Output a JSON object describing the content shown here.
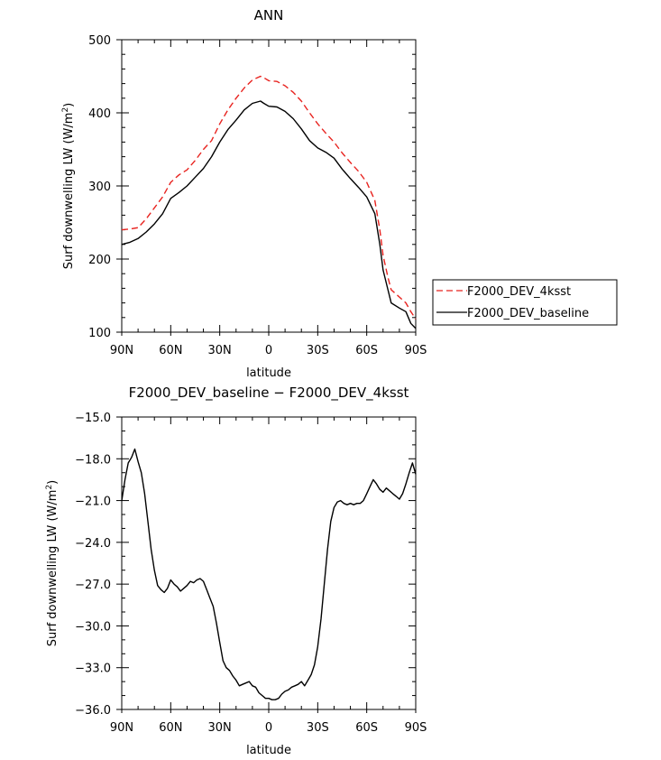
{
  "chart_data": [
    {
      "type": "line",
      "title": "ANN",
      "xlabel": "latitude",
      "ylabel": "Surf downwelling LW (W/m²)",
      "ylabel_main": "Surf downwelling LW (W/m",
      "ylabel_sup": "2",
      "ylabel_end": ")",
      "xlim": [
        90,
        -90
      ],
      "ylim": [
        100,
        500
      ],
      "x_ticks": [
        90,
        60,
        30,
        0,
        -30,
        -60,
        -90
      ],
      "x_tick_labels": [
        "90N",
        "60N",
        "30N",
        "0",
        "30S",
        "60S",
        "90S"
      ],
      "y_ticks": [
        100,
        200,
        300,
        400,
        500
      ],
      "y_tick_labels": [
        "100",
        "200",
        "300",
        "400",
        "500"
      ],
      "legend_position": "right",
      "series": [
        {
          "name": "F2000_DEV_4ksst",
          "color": "#e8231f",
          "dash": "dashed",
          "x": [
            90,
            85,
            80,
            75,
            70,
            65,
            60,
            55,
            50,
            45,
            40,
            35,
            30,
            25,
            20,
            15,
            10,
            5,
            3,
            0,
            -5,
            -10,
            -15,
            -20,
            -25,
            -30,
            -35,
            -40,
            -45,
            -50,
            -55,
            -60,
            -65,
            -68,
            -70,
            -73,
            -75,
            -80,
            -84,
            -87,
            -90
          ],
          "y": [
            240,
            241,
            243,
            255,
            270,
            285,
            305,
            315,
            322,
            335,
            350,
            362,
            385,
            404,
            420,
            434,
            445,
            450,
            448,
            444,
            443,
            437,
            428,
            416,
            400,
            385,
            372,
            360,
            345,
            332,
            320,
            305,
            280,
            240,
            205,
            175,
            158,
            148,
            140,
            128,
            118
          ]
        },
        {
          "name": "F2000_DEV_baseline",
          "color": "#000000",
          "dash": "solid",
          "x": [
            90,
            85,
            80,
            75,
            70,
            65,
            60,
            55,
            50,
            45,
            40,
            35,
            30,
            25,
            20,
            15,
            10,
            5,
            3,
            0,
            -5,
            -10,
            -15,
            -20,
            -25,
            -30,
            -35,
            -40,
            -45,
            -50,
            -55,
            -60,
            -65,
            -68,
            -70,
            -73,
            -75,
            -80,
            -84,
            -87,
            -90
          ],
          "y": [
            220,
            223,
            228,
            237,
            248,
            262,
            283,
            291,
            300,
            312,
            324,
            340,
            360,
            377,
            390,
            404,
            413,
            416,
            413,
            409,
            408,
            402,
            392,
            378,
            362,
            352,
            346,
            338,
            323,
            310,
            298,
            285,
            262,
            220,
            185,
            158,
            140,
            133,
            128,
            112,
            105
          ]
        }
      ]
    },
    {
      "type": "line",
      "title": "F2000_DEV_baseline − F2000_DEV_4ksst",
      "xlabel": "latitude",
      "ylabel": "Surf downwelling LW (W/m²)",
      "ylabel_main": "Surf downwelling LW (W/m",
      "ylabel_sup": "2",
      "ylabel_end": ")",
      "xlim": [
        90,
        -90
      ],
      "ylim": [
        -36,
        -15
      ],
      "x_ticks": [
        90,
        60,
        30,
        0,
        -30,
        -60,
        -90
      ],
      "x_tick_labels": [
        "90N",
        "60N",
        "30N",
        "0",
        "30S",
        "60S",
        "90S"
      ],
      "y_ticks": [
        -36,
        -33,
        -30,
        -27,
        -24,
        -21,
        -18,
        -15
      ],
      "y_tick_labels": [
        "−36.0",
        "−33.0",
        "−30.0",
        "−27.0",
        "−24.0",
        "−21.0",
        "−18.0",
        "−15.0"
      ],
      "series": [
        {
          "name": "F2000_DEV_baseline − F2000_DEV_4ksst",
          "color": "#000000",
          "dash": "solid",
          "x": [
            90,
            88,
            86,
            84,
            82,
            80,
            78,
            76,
            74,
            72,
            70,
            68,
            66,
            64,
            62,
            60,
            58,
            56,
            54,
            52,
            50,
            48,
            46,
            44,
            42,
            40,
            38,
            36,
            34,
            32,
            30,
            28,
            26,
            24,
            22,
            20,
            18,
            16,
            14,
            12,
            10,
            8,
            6,
            4,
            2,
            0,
            -2,
            -4,
            -6,
            -8,
            -10,
            -12,
            -14,
            -16,
            -18,
            -20,
            -22,
            -24,
            -26,
            -28,
            -30,
            -32,
            -34,
            -36,
            -38,
            -40,
            -42,
            -44,
            -46,
            -48,
            -50,
            -52,
            -54,
            -56,
            -58,
            -60,
            -62,
            -64,
            -66,
            -68,
            -70,
            -72,
            -74,
            -76,
            -78,
            -80,
            -82,
            -84,
            -86,
            -88,
            -90
          ],
          "y": [
            -21.0,
            -19.5,
            -18.3,
            -17.9,
            -17.3,
            -18.2,
            -19.0,
            -20.5,
            -22.5,
            -24.5,
            -26.0,
            -27.1,
            -27.4,
            -27.6,
            -27.3,
            -26.7,
            -27.0,
            -27.2,
            -27.5,
            -27.3,
            -27.1,
            -26.8,
            -26.9,
            -26.7,
            -26.6,
            -26.8,
            -27.4,
            -28.0,
            -28.6,
            -29.8,
            -31.2,
            -32.5,
            -33.0,
            -33.2,
            -33.6,
            -33.9,
            -34.3,
            -34.2,
            -34.1,
            -34.0,
            -34.3,
            -34.4,
            -34.8,
            -35.0,
            -35.2,
            -35.2,
            -35.3,
            -35.3,
            -35.2,
            -34.9,
            -34.7,
            -34.6,
            -34.4,
            -34.3,
            -34.2,
            -34.0,
            -34.3,
            -33.9,
            -33.5,
            -32.8,
            -31.5,
            -29.5,
            -27.0,
            -24.5,
            -22.5,
            -21.5,
            -21.1,
            -21.0,
            -21.2,
            -21.3,
            -21.2,
            -21.3,
            -21.2,
            -21.2,
            -21.0,
            -20.5,
            -20.0,
            -19.5,
            -19.8,
            -20.2,
            -20.4,
            -20.1,
            -20.3,
            -20.5,
            -20.7,
            -20.9,
            -20.5,
            -19.8,
            -19.0,
            -18.3,
            -19.1
          ]
        }
      ]
    }
  ]
}
